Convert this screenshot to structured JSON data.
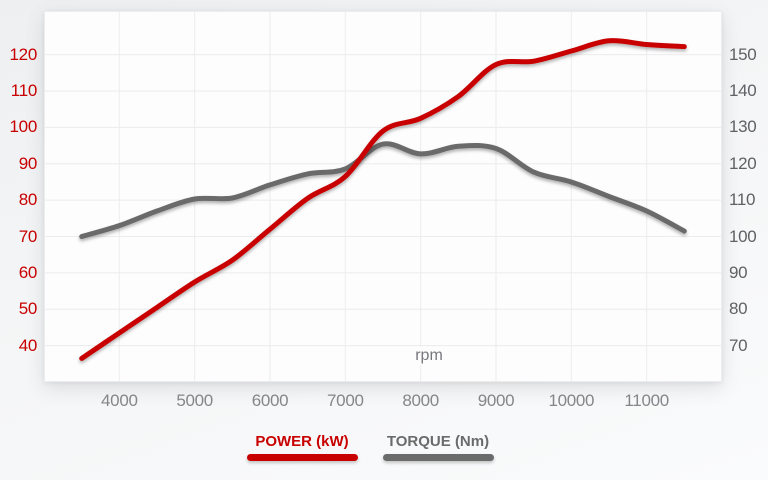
{
  "chart_data": {
    "type": "line",
    "xlabel": "rpm",
    "x": [
      3500,
      4000,
      4500,
      5000,
      5500,
      6000,
      6500,
      7000,
      7500,
      8000,
      8500,
      9000,
      9500,
      10000,
      10500,
      11000,
      11500
    ],
    "x_ticks": [
      4000,
      5000,
      6000,
      7000,
      8000,
      9000,
      10000,
      11000
    ],
    "x_range": [
      3000,
      12000
    ],
    "series": [
      {
        "name": "POWER (kW)",
        "axis": "left",
        "color": "#c80000",
        "values": [
          36.5,
          43.5,
          50.5,
          57.5,
          63.5,
          72,
          80.5,
          86.5,
          99,
          102.5,
          108.5,
          117.3,
          118.2,
          121,
          123.8,
          122.8,
          122.2
        ]
      },
      {
        "name": "TORQUE (Nm)",
        "axis": "right",
        "color": "#6b6b6b",
        "values": [
          100,
          103,
          107,
          110.3,
          110.6,
          114.2,
          117.2,
          118.6,
          125.4,
          122.7,
          124.8,
          124.2,
          117.7,
          115,
          111,
          107,
          101.5
        ]
      }
    ],
    "left_axis": {
      "ticks": [
        40,
        50,
        60,
        70,
        80,
        90,
        100,
        110,
        120
      ],
      "range": [
        30,
        132
      ],
      "color": "#c80000"
    },
    "right_axis": {
      "ticks": [
        70,
        80,
        90,
        100,
        110,
        120,
        130,
        140,
        150
      ],
      "range": [
        60,
        162
      ],
      "color": "#606166"
    },
    "grid": true,
    "legend_position": "bottom",
    "colors": {
      "grid": "#ececec",
      "border": "#ededef",
      "x_tick_text": "#85868a",
      "xlabel_text": "#77787c",
      "plot_bg": "#fdfdfe"
    }
  }
}
